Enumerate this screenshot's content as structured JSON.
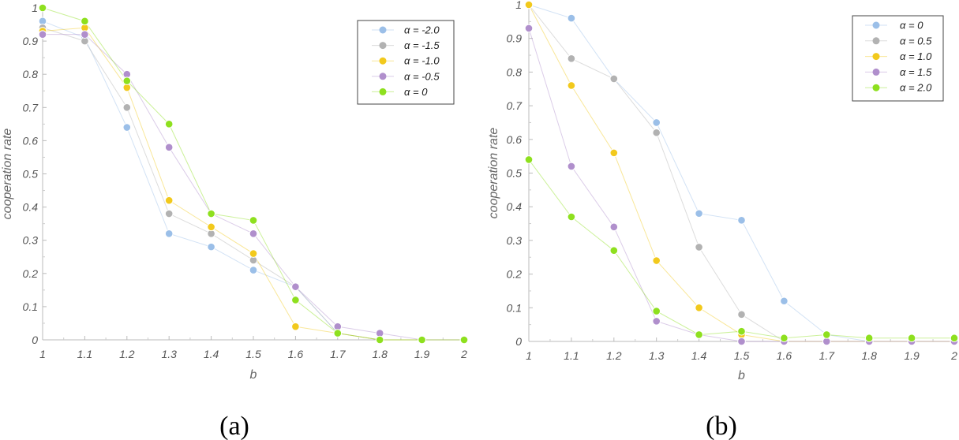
{
  "chart_data": [
    {
      "type": "line",
      "caption": "(a)",
      "xlabel": "b",
      "ylabel": "cooperation rate",
      "xlim": [
        1,
        2
      ],
      "ylim": [
        0,
        1
      ],
      "x": [
        1,
        1.1,
        1.2,
        1.3,
        1.4,
        1.5,
        1.6,
        1.7,
        1.8,
        1.9,
        2
      ],
      "x_tick_labels": [
        "1",
        "1.1",
        "1.2",
        "1.3",
        "1.4",
        "1.5",
        "1.6",
        "1.7",
        "1.8",
        "1.9",
        "2"
      ],
      "y_tick_labels": [
        "0",
        "0.1",
        "0.2",
        "0.3",
        "0.4",
        "0.5",
        "0.6",
        "0.7",
        "0.8",
        "0.9",
        "1"
      ],
      "grid": false,
      "legend_position": "top-right",
      "series": [
        {
          "name": "α = -2.0",
          "color": "#9bbfe8",
          "values": [
            0.96,
            0.91,
            0.64,
            0.32,
            0.28,
            0.21,
            0.16,
            0.02,
            0.0,
            0.0,
            0.0
          ]
        },
        {
          "name": "α = -1.5",
          "color": "#b2b2b2",
          "values": [
            0.94,
            0.9,
            0.7,
            0.38,
            0.32,
            0.24,
            0.16,
            0.02,
            0.0,
            0.0,
            0.0
          ]
        },
        {
          "name": "α = -1.0",
          "color": "#f2c91c",
          "values": [
            0.93,
            0.94,
            0.76,
            0.42,
            0.34,
            0.26,
            0.04,
            0.02,
            0.0,
            0.0,
            0.0
          ]
        },
        {
          "name": "α = -0.5",
          "color": "#b08fcc",
          "values": [
            0.92,
            0.92,
            0.8,
            0.58,
            0.38,
            0.32,
            0.16,
            0.04,
            0.02,
            0.0,
            0.0
          ]
        },
        {
          "name": "α = 0",
          "color": "#8ee01e",
          "values": [
            1.0,
            0.96,
            0.78,
            0.65,
            0.38,
            0.36,
            0.12,
            0.02,
            0.0,
            0.0,
            0.0
          ]
        }
      ]
    },
    {
      "type": "line",
      "caption": "(b)",
      "xlabel": "b",
      "ylabel": "cooperation rate",
      "xlim": [
        1,
        2
      ],
      "ylim": [
        0,
        1
      ],
      "x": [
        1,
        1.1,
        1.2,
        1.3,
        1.4,
        1.5,
        1.6,
        1.7,
        1.8,
        1.9,
        2
      ],
      "x_tick_labels": [
        "1",
        "1.1",
        "1.2",
        "1.3",
        "1.4",
        "1.5",
        "1.6",
        "1.7",
        "1.8",
        "1.9",
        "2"
      ],
      "y_tick_labels": [
        "0",
        "0.1",
        "0.2",
        "0.3",
        "0.4",
        "0.5",
        "0.6",
        "0.7",
        "0.8",
        "0.9",
        "1"
      ],
      "grid": false,
      "legend_position": "top-right",
      "series": [
        {
          "name": "α = 0",
          "color": "#9bbfe8",
          "values": [
            1.0,
            0.96,
            0.78,
            0.65,
            0.38,
            0.36,
            0.12,
            0.02,
            0.0,
            0.0,
            0.0
          ]
        },
        {
          "name": "α = 0.5",
          "color": "#b2b2b2",
          "values": [
            1.0,
            0.84,
            0.78,
            0.62,
            0.28,
            0.08,
            0.0,
            0.0,
            0.0,
            0.0,
            0.0
          ]
        },
        {
          "name": "α = 1.0",
          "color": "#f2c91c",
          "values": [
            1.0,
            0.76,
            0.56,
            0.24,
            0.1,
            0.02,
            0.0,
            0.0,
            0.0,
            0.0,
            0.0
          ]
        },
        {
          "name": "α = 1.5",
          "color": "#b08fcc",
          "values": [
            0.93,
            0.52,
            0.34,
            0.06,
            0.02,
            0.0,
            0.0,
            0.0,
            0.0,
            0.0,
            0.0
          ]
        },
        {
          "name": "α = 2.0",
          "color": "#8ee01e",
          "values": [
            0.54,
            0.37,
            0.27,
            0.09,
            0.02,
            0.03,
            0.01,
            0.02,
            0.01,
            0.01,
            0.01
          ]
        }
      ]
    }
  ]
}
